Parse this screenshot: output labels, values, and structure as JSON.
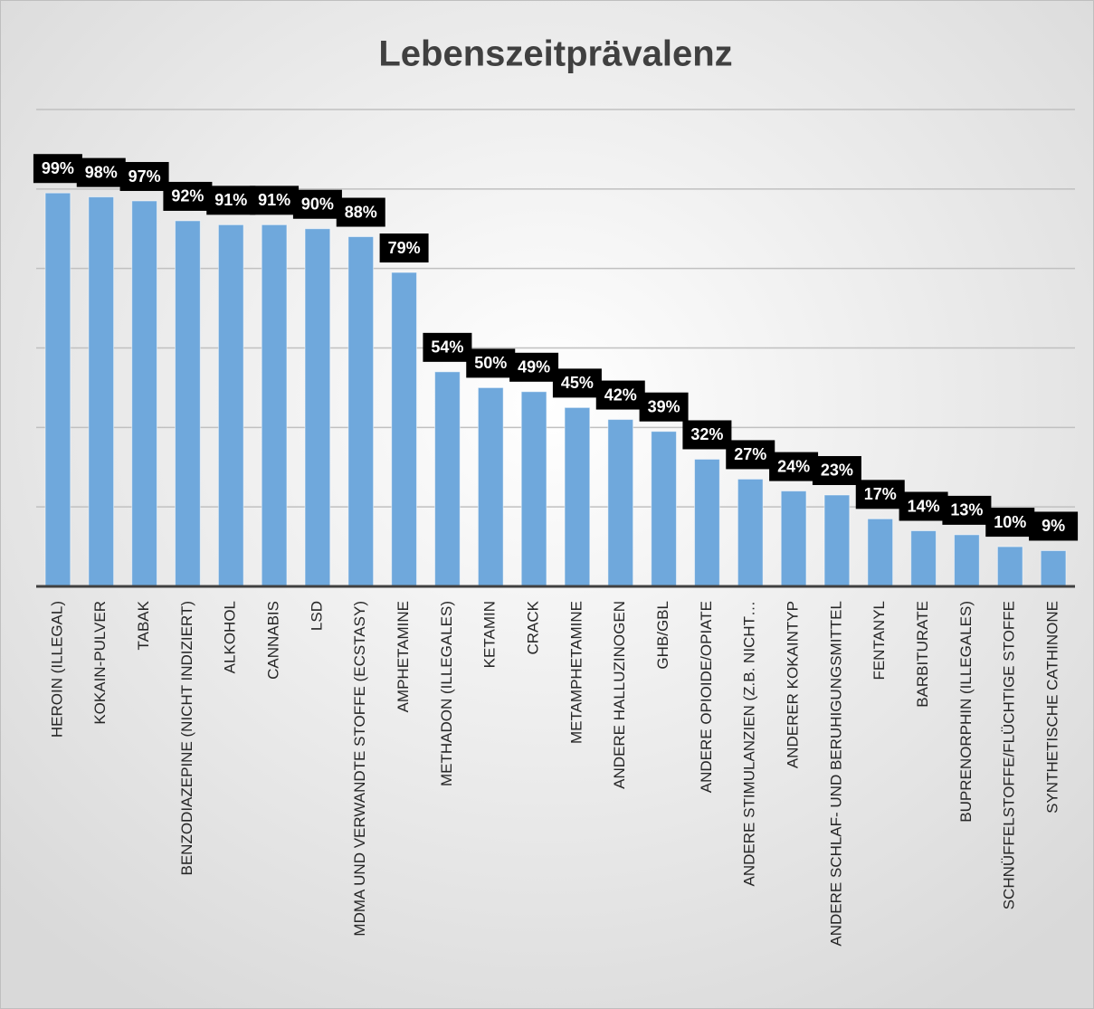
{
  "chart_data": {
    "type": "bar",
    "title": "Lebenszeitprävalenz",
    "categories": [
      "HEROIN (ILLEGAL)",
      "KOKAIN-PULVER",
      "TABAK",
      "BENZODIAZEPINE (NICHT INDIZIERT)",
      "ALKOHOL",
      "CANNABIS",
      "LSD",
      "MDMA UND VERWANDTE STOFFE (ECSTASY)",
      "AMPHETAMINE",
      "METHADON (ILLEGALES)",
      "KETAMIN",
      "CRACK",
      "METAMPHETAMINE",
      "ANDERE HALLUZINOGEN",
      "GHB/GBL",
      "ANDERE OPIOIDE/OPIATE",
      "ANDERE STIMULANZIEN (Z.B. NICHT…",
      "ANDERER KOKAINTYP",
      "ANDERE SCHLAF- UND BERUHIGUNGSMITTEL",
      "FENTANYL",
      "BARBITURATE",
      "BUPRENORPHIN (ILLEGALES)",
      "SCHNÜFFELSTOFFE/FLÜCHTIGE STOFFE",
      "SYNTHETISCHE CATHINONE"
    ],
    "values": [
      99,
      98,
      97,
      92,
      91,
      91,
      90,
      88,
      79,
      54,
      50,
      49,
      45,
      42,
      39,
      32,
      27,
      24,
      23,
      17,
      14,
      13,
      10,
      9
    ],
    "value_labels": [
      "99%",
      "98%",
      "97%",
      "92%",
      "91%",
      "91%",
      "90%",
      "88%",
      "79%",
      "54%",
      "50%",
      "49%",
      "45%",
      "42%",
      "39%",
      "32%",
      "27%",
      "24%",
      "23%",
      "17%",
      "14%",
      "13%",
      "10%",
      "9%"
    ],
    "color": "#6fa8dc",
    "ylim": [
      0,
      120
    ],
    "yticks": [
      0,
      20,
      40,
      60,
      80,
      100,
      120
    ],
    "grid": true
  }
}
